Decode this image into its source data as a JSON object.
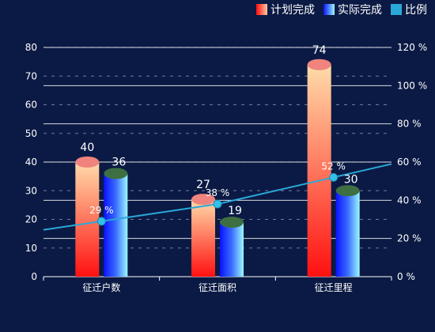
{
  "chart_data": {
    "type": "bar",
    "categories": [
      "征迁户数",
      "征迁面积",
      "征迁里程"
    ],
    "series": [
      {
        "name": "计划完成",
        "values": [
          40,
          27,
          74
        ],
        "axis": "left",
        "color": "#ff1b1b",
        "color_top": "#ffd9a8",
        "cap_color": "#f0837d"
      },
      {
        "name": "实际完成",
        "values": [
          36,
          19,
          30
        ],
        "axis": "left",
        "color": "#1420ff",
        "color_end": "#8ef5ff",
        "cap_color": "#3e6f42"
      },
      {
        "name": "比例",
        "type": "line",
        "values": [
          29,
          38,
          52
        ],
        "labels": [
          "29 %",
          "38 %",
          "52 %"
        ],
        "axis": "right",
        "color": "#2aa8d8"
      }
    ],
    "y_left": {
      "min": 0,
      "max": 80,
      "ticks": [
        "0",
        "10",
        "20",
        "30",
        "40",
        "50",
        "60",
        "70",
        "80"
      ]
    },
    "y_right": {
      "min": 0,
      "max": 120,
      "ticks": [
        "0 %",
        "20 %",
        "40 %",
        "60 %",
        "80 %",
        "100 %",
        "120 %"
      ]
    },
    "legend": "top-right",
    "grid": true
  }
}
